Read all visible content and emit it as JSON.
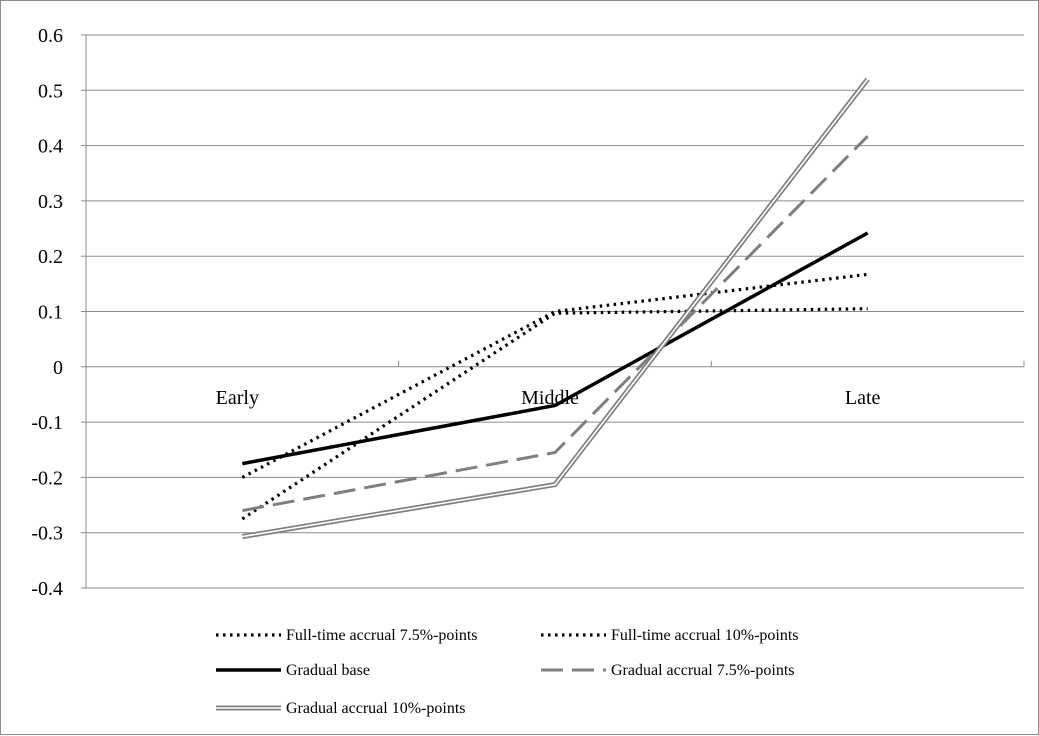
{
  "chart_data": {
    "type": "line",
    "title": "",
    "xlabel": "",
    "ylabel": "",
    "categories": [
      "Early",
      "Middle",
      "Late"
    ],
    "ylim": [
      -0.4,
      0.6
    ],
    "yticks": [
      0.6,
      0.5,
      0.4,
      0.3,
      0.2,
      0.1,
      0,
      -0.1,
      -0.2,
      -0.3,
      -0.4
    ],
    "grid": true,
    "legend_position": "bottom",
    "series": [
      {
        "name": "Full-time accrual 7.5%-points",
        "values": [
          -0.2,
          0.1,
          0.167
        ],
        "style": "dotted",
        "color": "#000000"
      },
      {
        "name": "Full-time accrual 10%-points",
        "values": [
          -0.275,
          0.097,
          0.105
        ],
        "style": "dotted",
        "color": "#000000"
      },
      {
        "name": "Gradual base",
        "values": [
          -0.175,
          -0.07,
          0.242
        ],
        "style": "solid",
        "color": "#000000"
      },
      {
        "name": "Gradual accrual 7.5%-points",
        "values": [
          -0.26,
          -0.155,
          0.417
        ],
        "style": "dashed",
        "color": "#7f7f7f"
      },
      {
        "name": "Gradual accrual 10%-points",
        "values": [
          -0.307,
          -0.213,
          0.52
        ],
        "style": "double",
        "color": "#7f7f7f"
      }
    ]
  }
}
